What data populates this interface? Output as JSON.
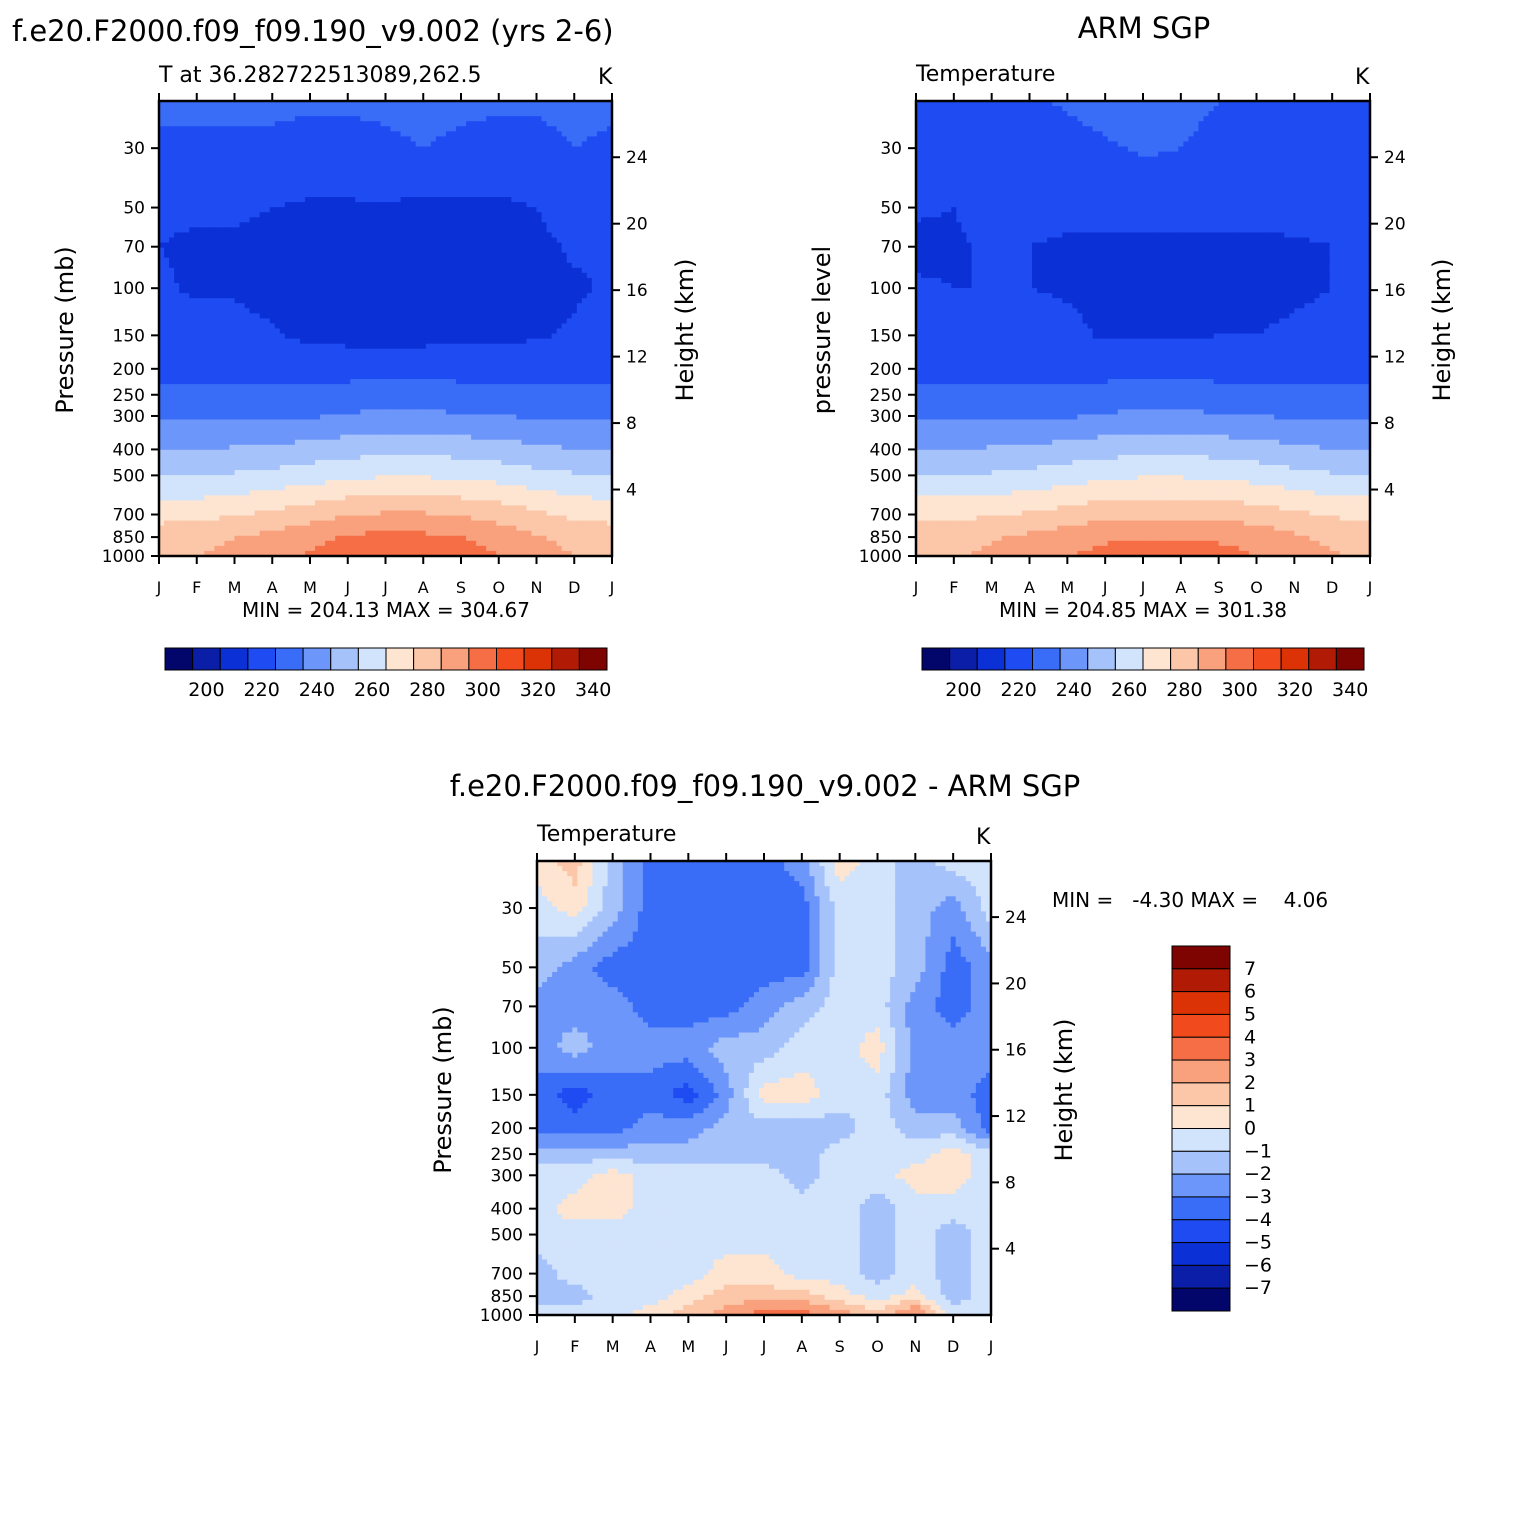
{
  "chart_data": [
    {
      "type": "contour",
      "header": "f.e20.F2000.f09_f09.190_v9.002 (yrs 2-6)",
      "title": "T at 36.282722513089,262.5",
      "units": "K",
      "ylabel": "Pressure (mb)",
      "ylabel_right": "Height (km)",
      "x_ticks": [
        "J",
        "F",
        "M",
        "A",
        "M",
        "J",
        "J",
        "A",
        "S",
        "O",
        "N",
        "D",
        "J"
      ],
      "y_ticks": [
        30,
        50,
        70,
        100,
        150,
        200,
        250,
        300,
        400,
        500,
        700,
        850,
        1000
      ],
      "y_right_ticks": [
        24,
        20,
        16,
        12,
        8,
        4
      ],
      "y_scale": "log",
      "ylim": [
        20,
        1000
      ],
      "minmax_text": "MIN = 204.13 MAX = 304.67",
      "fields": {
        "months": [
          0,
          1,
          2,
          3,
          4,
          5,
          6,
          7,
          8,
          9,
          10,
          11,
          12
        ],
        "levels": [
          {
            "p": 20,
            "T": [
              221,
              221,
              221,
              221,
              221,
              221,
              221,
              222,
              221,
              221,
              221,
              222,
              221
            ]
          },
          {
            "p": 30,
            "T": [
              219,
              219,
              219,
              219,
              218,
              218,
              219,
              220,
              219,
              218,
              218,
              220,
              219
            ]
          },
          {
            "p": 40,
            "T": [
              213,
              213,
              214,
              213,
              212,
              212,
              213,
              213,
              214,
              213,
              214,
              218,
              213
            ]
          },
          {
            "p": 50,
            "T": [
              211,
              211,
              211,
              210,
              209,
              209,
              209,
              208,
              208,
              208,
              210,
              214,
              211
            ]
          },
          {
            "p": 70,
            "T": [
              210,
              209,
              209,
              208,
              207,
              207,
              206,
              206,
              207,
              207,
              208,
              211,
              210
            ]
          },
          {
            "p": 100,
            "T": [
              211,
              209,
              209,
              207,
              206,
              206,
              206,
              206,
              207,
              207,
              208,
              209,
              211
            ]
          },
          {
            "p": 150,
            "T": [
              214,
              213,
              213,
              211,
              208,
              207,
              207,
              207,
              208,
              208,
              209,
              211,
              214
            ]
          },
          {
            "p": 200,
            "T": [
              218,
              218,
              218,
              217,
              216,
              216,
              216,
              216,
              216,
              216,
              216,
              217,
              218
            ]
          },
          {
            "p": 250,
            "T": [
              222,
              222,
              222,
              222,
              223,
              224,
              225,
              225,
              224,
              223,
              222,
              222,
              222
            ]
          },
          {
            "p": 300,
            "T": [
              228,
              228,
              228,
              228,
              229,
              231,
              232,
              232,
              231,
              230,
              229,
              228,
              228
            ]
          },
          {
            "p": 400,
            "T": [
              240,
              240,
              241,
              242,
              244,
              246,
              247,
              247,
              246,
              244,
              242,
              240,
              240
            ]
          },
          {
            "p": 500,
            "T": [
              250,
              250,
              251,
              253,
              255,
              258,
              259,
              259,
              258,
              256,
              253,
              251,
              250
            ]
          },
          {
            "p": 700,
            "T": [
              266,
              267,
              269,
              272,
              276,
              279,
              281,
              281,
              279,
              276,
              272,
              268,
              266
            ]
          },
          {
            "p": 850,
            "T": [
              276,
              277,
              280,
              283,
              287,
              291,
              293,
              292,
              290,
              286,
              281,
              277,
              276
            ]
          },
          {
            "p": 1000,
            "T": [
              279,
              280,
              283,
              286,
              291,
              296,
              299,
              299,
              295,
              290,
              284,
              280,
              279
            ]
          }
        ]
      },
      "colorbar": {
        "ticks": [
          200,
          220,
          240,
          260,
          280,
          300,
          320,
          340
        ]
      }
    },
    {
      "type": "contour",
      "header": "ARM SGP",
      "title": "Temperature",
      "units": "K",
      "ylabel": "pressure level",
      "ylabel_right": "Height (km)",
      "x_ticks": [
        "J",
        "F",
        "M",
        "A",
        "M",
        "J",
        "J",
        "A",
        "S",
        "O",
        "N",
        "D",
        "J"
      ],
      "y_ticks": [
        30,
        50,
        70,
        100,
        150,
        200,
        250,
        300,
        400,
        500,
        700,
        850,
        1000
      ],
      "y_right_ticks": [
        24,
        20,
        16,
        12,
        8,
        4
      ],
      "y_scale": "log",
      "ylim": [
        20,
        1000
      ],
      "minmax_text": "MIN = 204.85 MAX = 301.38",
      "fields": {
        "months": [
          0,
          1,
          2,
          3,
          4,
          5,
          6,
          7,
          8,
          9,
          10,
          11,
          12
        ],
        "levels": [
          {
            "p": 20,
            "T": [
              219,
              219,
              219,
              219,
              221,
              223,
              224,
              223,
              220,
              219,
              219,
              219,
              219
            ]
          },
          {
            "p": 30,
            "T": [
              216,
              216,
              216,
              216,
              217,
              219,
              221,
              220,
              217,
              216,
              216,
              216,
              216
            ]
          },
          {
            "p": 50,
            "T": [
              211,
              210,
              213,
              214,
              214,
              214,
              214,
              214,
              214,
              213,
              213,
              213,
              211
            ]
          },
          {
            "p": 70,
            "T": [
              208,
              209,
              211,
              210,
              208,
              208,
              208,
              208,
              208,
              208,
              209,
              210,
              210
            ]
          },
          {
            "p": 100,
            "T": [
              211,
              210,
              210,
              210,
              209,
              208,
              208,
              208,
              208,
              208,
              209,
              210,
              211
            ]
          },
          {
            "p": 150,
            "T": [
              214,
              214,
              214,
              214,
              212,
              209,
              209,
              209,
              210,
              210,
              211,
              212,
              214
            ]
          },
          {
            "p": 200,
            "T": [
              218,
              218,
              218,
              218,
              217,
              216,
              216,
              216,
              216,
              216,
              216,
              217,
              218
            ]
          },
          {
            "p": 250,
            "T": [
              222,
              222,
              221,
              222,
              223,
              224,
              225,
              225,
              224,
              223,
              222,
              222,
              222
            ]
          },
          {
            "p": 300,
            "T": [
              228,
              228,
              228,
              228,
              229,
              231,
              232,
              232,
              231,
              230,
              229,
              228,
              228
            ]
          },
          {
            "p": 400,
            "T": [
              240,
              240,
              241,
              242,
              244,
              246,
              247,
              247,
              246,
              244,
              242,
              240,
              240
            ]
          },
          {
            "p": 500,
            "T": [
              250,
              250,
              251,
              253,
              255,
              258,
              259,
              259,
              258,
              256,
              253,
              251,
              250
            ]
          },
          {
            "p": 700,
            "T": [
              268,
              268,
              269,
              271,
              274,
              277,
              278,
              278,
              277,
              275,
              272,
              269,
              268
            ]
          },
          {
            "p": 850,
            "T": [
              275,
              276,
              279,
              282,
              285,
              288,
              289,
              289,
              288,
              286,
              282,
              277,
              275
            ]
          },
          {
            "p": 1000,
            "T": [
              278,
              279,
              282,
              285,
              289,
              294,
              297,
              297,
              294,
              290,
              286,
              281,
              278
            ]
          }
        ]
      },
      "colorbar": {
        "ticks": [
          200,
          220,
          240,
          260,
          280,
          300,
          320,
          340
        ]
      }
    },
    {
      "type": "contour",
      "header": "f.e20.F2000.f09_f09.190_v9.002 - ARM SGP",
      "title": "Temperature",
      "units": "K",
      "ylabel": "Pressure (mb)",
      "ylabel_right": "Height (km)",
      "x_ticks": [
        "J",
        "F",
        "M",
        "A",
        "M",
        "J",
        "J",
        "A",
        "S",
        "O",
        "N",
        "D",
        "J"
      ],
      "y_ticks": [
        30,
        50,
        70,
        100,
        150,
        200,
        250,
        300,
        400,
        500,
        700,
        850,
        1000
      ],
      "y_right_ticks": [
        24,
        20,
        16,
        12,
        8,
        4
      ],
      "y_scale": "log",
      "ylim": [
        20,
        1000
      ],
      "minmax_text": "MIN =   -4.30 MAX =    4.06",
      "fields": {
        "months": [
          0,
          1,
          2,
          3,
          4,
          5,
          6,
          7,
          8,
          9,
          10,
          11,
          12
        ],
        "levels": [
          {
            "p": 20,
            "T": [
              0.5,
              1.5,
              -1.5,
              -3.5,
              -3.5,
              -3.5,
              -3.5,
              -2.5,
              0.5,
              -0.5,
              -1.5,
              -0.5,
              -0.5
            ]
          },
          {
            "p": 30,
            "T": [
              -0.5,
              0.5,
              -1.5,
              -3.5,
              -3.5,
              -3.5,
              -3.5,
              -3.5,
              -0.5,
              -0.5,
              -1.5,
              -2.5,
              -0.5
            ]
          },
          {
            "p": 50,
            "T": [
              -1.5,
              -2.5,
              -3.5,
              -3.5,
              -3.5,
              -3.5,
              -3.5,
              -3.5,
              -0.5,
              -0.5,
              -1.5,
              -3.5,
              -2.5
            ]
          },
          {
            "p": 70,
            "T": [
              -2.5,
              -2.5,
              -2.5,
              -3.5,
              -3.5,
              -3.5,
              -2.5,
              -1.5,
              -0.5,
              -0.5,
              -2.5,
              -3.5,
              -2.5
            ]
          },
          {
            "p": 100,
            "T": [
              -2.5,
              -1.5,
              -2.5,
              -2.5,
              -2.5,
              -1.5,
              -1.5,
              -0.5,
              -0.5,
              0.5,
              -2.5,
              -2.5,
              -2.5
            ]
          },
          {
            "p": 150,
            "T": [
              -3.5,
              -4.5,
              -3.5,
              -3.5,
              -4.5,
              -2.5,
              0.5,
              0.5,
              -0.5,
              -0.5,
              -2.5,
              -2.5,
              -3.5
            ]
          },
          {
            "p": 200,
            "T": [
              -3.5,
              -3.5,
              -3.5,
              -2.5,
              -2.5,
              -1.5,
              -1.5,
              -1.5,
              -1.5,
              -0.5,
              -1.5,
              -1.5,
              -3.5
            ]
          },
          {
            "p": 250,
            "T": [
              -1.5,
              -1.5,
              -1.5,
              -1.5,
              -1.5,
              -1.5,
              -1.5,
              -1.5,
              -0.5,
              -0.5,
              -0.5,
              0.5,
              -0.5
            ]
          },
          {
            "p": 300,
            "T": [
              -0.5,
              -0.5,
              0.5,
              -0.5,
              -0.5,
              -0.5,
              -0.5,
              -1.5,
              -0.5,
              -0.5,
              0.5,
              0.5,
              -0.5
            ]
          },
          {
            "p": 400,
            "T": [
              -0.5,
              0.5,
              0.5,
              -0.5,
              -0.5,
              -0.5,
              -0.5,
              -0.5,
              -0.5,
              -1.5,
              -0.5,
              -0.5,
              -0.5
            ]
          },
          {
            "p": 500,
            "T": [
              -0.5,
              -0.5,
              -0.5,
              -0.5,
              -0.5,
              -0.5,
              -0.5,
              -0.5,
              -0.5,
              -1.5,
              -0.5,
              -1.5,
              -0.5
            ]
          },
          {
            "p": 700,
            "T": [
              -1.5,
              -0.5,
              -0.5,
              -0.5,
              -0.5,
              0.5,
              0.5,
              -0.5,
              -0.5,
              -1.5,
              -0.5,
              -1.5,
              -0.5
            ]
          },
          {
            "p": 850,
            "T": [
              -1.5,
              -1.5,
              -0.5,
              -0.5,
              0.5,
              1.5,
              1.5,
              1.5,
              0.5,
              -0.5,
              0.5,
              -1.5,
              -0.5
            ]
          },
          {
            "p": 1000,
            "T": [
              -0.5,
              -0.5,
              -0.5,
              0.5,
              1.5,
              2.5,
              3.5,
              3.5,
              2.5,
              1.5,
              3.5,
              -0.5,
              -0.5
            ]
          }
        ]
      },
      "colorbar": {
        "ticks": [
          7,
          6,
          5,
          4,
          3,
          2,
          1,
          0,
          -1,
          -2,
          -3,
          -4,
          -5,
          -6,
          -7
        ]
      }
    }
  ]
}
